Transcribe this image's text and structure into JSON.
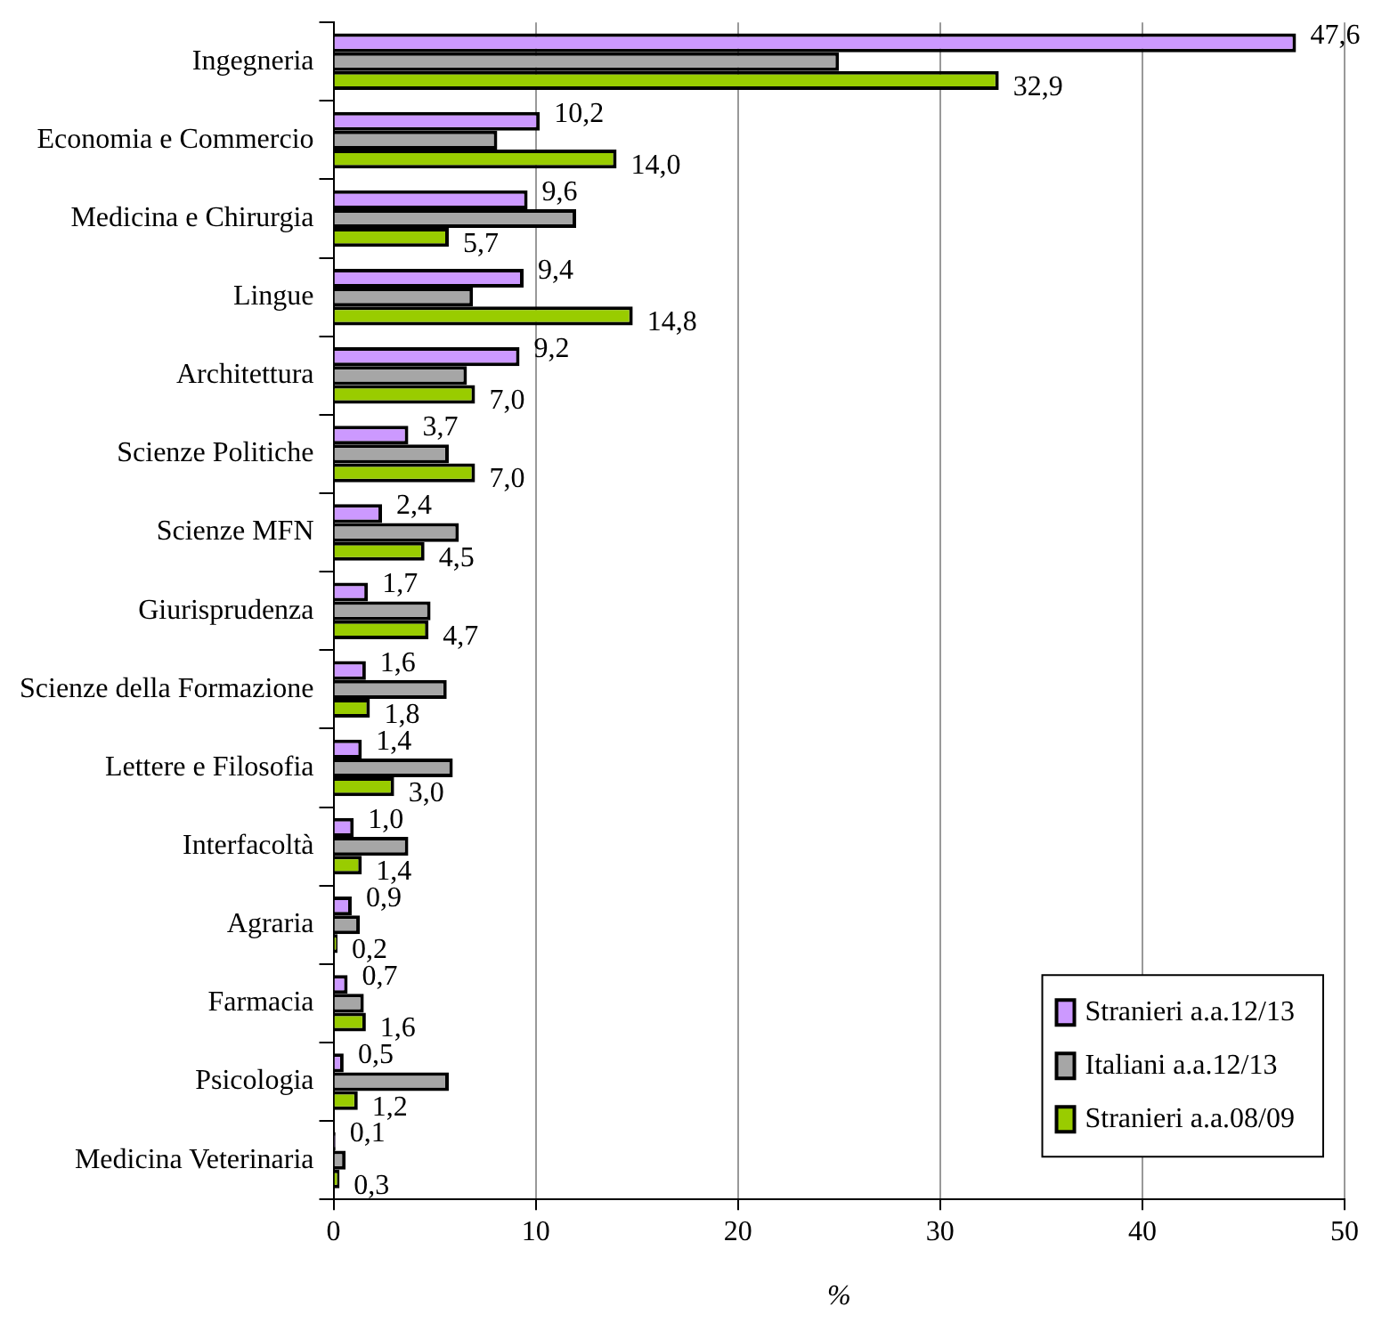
{
  "chart_data": {
    "type": "bar",
    "orientation": "horizontal",
    "xlabel": "%",
    "categories": [
      "Ingegneria",
      "Economia e Commercio",
      "Medicina e Chirurgia",
      "Lingue",
      "Architettura",
      "Scienze Politiche",
      "Scienze MFN",
      "Giurisprudenza",
      "Scienze della Formazione",
      "Lettere e Filosofia",
      "Interfacoltà",
      "Agraria",
      "Farmacia",
      "Psicologia",
      "Medicina Veterinaria"
    ],
    "series": [
      {
        "name": "Stranieri a.a.12/13",
        "color": "#cc99ff",
        "values": [
          47.6,
          10.2,
          9.6,
          9.4,
          9.2,
          3.7,
          2.4,
          1.7,
          1.6,
          1.4,
          1.0,
          0.9,
          0.7,
          0.5,
          0.1
        ],
        "value_labels": [
          "47,6",
          "10,2",
          "9,6",
          "9,4",
          "9,2",
          "3,7",
          "2,4",
          "1,7",
          "1,6",
          "1,4",
          "1,0",
          "0,9",
          "0,7",
          "0,5",
          "0,1"
        ]
      },
      {
        "name": "Italiani a.a.12/13",
        "color": "#a6a6a6",
        "values": [
          25.0,
          8.1,
          12.0,
          6.9,
          6.6,
          5.7,
          6.2,
          4.8,
          5.6,
          5.9,
          3.7,
          1.3,
          1.5,
          5.7,
          0.6
        ]
      },
      {
        "name": "Stranieri a.a.08/09",
        "color": "#99cc00",
        "values": [
          32.9,
          14.0,
          5.7,
          14.8,
          7.0,
          7.0,
          4.5,
          4.7,
          1.8,
          3.0,
          1.4,
          0.2,
          1.6,
          1.2,
          0.3
        ],
        "value_labels": [
          "32,9",
          "14,0",
          "5,7",
          "14,8",
          "7,0",
          "7,0",
          "4,5",
          "4,7",
          "1,8",
          "3,0",
          "1,4",
          "0,2",
          "1,6",
          "1,2",
          "0,3"
        ]
      }
    ],
    "xlim": [
      0,
      50
    ],
    "xticks": [
      0,
      10,
      20,
      30,
      40,
      50
    ],
    "grid": "x",
    "legend": "bottom right"
  }
}
